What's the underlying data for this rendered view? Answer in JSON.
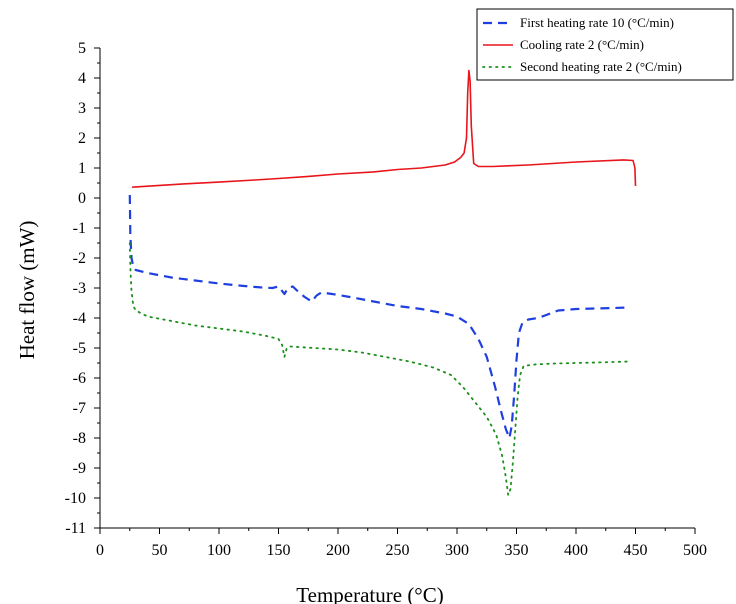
{
  "chart_data": {
    "type": "line",
    "xlabel": "Temperature (°C)",
    "ylabel": "Heat flow (mW)",
    "xlim": [
      0,
      500
    ],
    "ylim": [
      -11,
      5
    ],
    "x_ticks": [
      0,
      50,
      100,
      150,
      200,
      250,
      300,
      350,
      400,
      450,
      500
    ],
    "y_ticks": [
      -11,
      -10,
      -9,
      -8,
      -7,
      -6,
      -5,
      -4,
      -3,
      -2,
      -1,
      0,
      1,
      2,
      3,
      4,
      5
    ],
    "grid": false,
    "legend_position": "top-right",
    "series": [
      {
        "name": "First heating rate 10 (°C/min)",
        "color": "#1f3fe0",
        "line_style": "dashed",
        "points": [
          [
            25,
            0.1
          ],
          [
            25.5,
            -1.2
          ],
          [
            26.5,
            -2.0
          ],
          [
            28,
            -2.3
          ],
          [
            30,
            -2.4
          ],
          [
            40,
            -2.5
          ],
          [
            60,
            -2.65
          ],
          [
            80,
            -2.75
          ],
          [
            100,
            -2.85
          ],
          [
            120,
            -2.93
          ],
          [
            135,
            -2.98
          ],
          [
            145,
            -3.0
          ],
          [
            150,
            -2.95
          ],
          [
            152,
            -3.05
          ],
          [
            155,
            -3.2
          ],
          [
            158,
            -3.0
          ],
          [
            162,
            -2.95
          ],
          [
            166,
            -3.1
          ],
          [
            172,
            -3.3
          ],
          [
            178,
            -3.45
          ],
          [
            182,
            -3.25
          ],
          [
            186,
            -3.15
          ],
          [
            195,
            -3.2
          ],
          [
            210,
            -3.3
          ],
          [
            230,
            -3.45
          ],
          [
            250,
            -3.6
          ],
          [
            270,
            -3.7
          ],
          [
            290,
            -3.85
          ],
          [
            300,
            -3.95
          ],
          [
            310,
            -4.2
          ],
          [
            318,
            -4.7
          ],
          [
            325,
            -5.3
          ],
          [
            332,
            -6.3
          ],
          [
            337,
            -7.1
          ],
          [
            341,
            -7.7
          ],
          [
            344,
            -8.0
          ],
          [
            346,
            -7.6
          ],
          [
            348,
            -6.6
          ],
          [
            350,
            -5.4
          ],
          [
            352,
            -4.5
          ],
          [
            355,
            -4.15
          ],
          [
            360,
            -4.05
          ],
          [
            368,
            -4.0
          ],
          [
            375,
            -3.9
          ],
          [
            385,
            -3.75
          ],
          [
            400,
            -3.7
          ],
          [
            420,
            -3.68
          ],
          [
            445,
            -3.65
          ]
        ]
      },
      {
        "name": "Cooling rate 2 (°C/min)",
        "color": "#e8151b",
        "line_style": "solid",
        "points": [
          [
            450,
            0.4
          ],
          [
            449.5,
            1.0
          ],
          [
            448,
            1.25
          ],
          [
            440,
            1.27
          ],
          [
            400,
            1.2
          ],
          [
            360,
            1.1
          ],
          [
            330,
            1.05
          ],
          [
            318,
            1.05
          ],
          [
            314,
            1.15
          ],
          [
            312,
            2.4
          ],
          [
            311,
            3.9
          ],
          [
            310,
            4.25
          ],
          [
            309,
            3.5
          ],
          [
            308,
            2.0
          ],
          [
            306,
            1.5
          ],
          [
            303,
            1.35
          ],
          [
            298,
            1.2
          ],
          [
            290,
            1.1
          ],
          [
            270,
            1.0
          ],
          [
            250,
            0.95
          ],
          [
            230,
            0.87
          ],
          [
            200,
            0.8
          ],
          [
            175,
            0.72
          ],
          [
            150,
            0.65
          ],
          [
            130,
            0.6
          ],
          [
            100,
            0.53
          ],
          [
            70,
            0.47
          ],
          [
            50,
            0.42
          ],
          [
            35,
            0.38
          ],
          [
            27,
            0.36
          ]
        ]
      },
      {
        "name": "Second heating rate 2 (°C/min)",
        "color": "#1a8f1a",
        "line_style": "dotted",
        "points": [
          [
            25,
            -1.5
          ],
          [
            25.5,
            -2.3
          ],
          [
            26.5,
            -3.1
          ],
          [
            28,
            -3.6
          ],
          [
            30,
            -3.75
          ],
          [
            40,
            -3.95
          ],
          [
            60,
            -4.1
          ],
          [
            80,
            -4.25
          ],
          [
            100,
            -4.35
          ],
          [
            120,
            -4.45
          ],
          [
            140,
            -4.6
          ],
          [
            150,
            -4.7
          ],
          [
            153,
            -4.9
          ],
          [
            155,
            -5.3
          ],
          [
            157,
            -5.0
          ],
          [
            160,
            -4.95
          ],
          [
            180,
            -5.0
          ],
          [
            200,
            -5.05
          ],
          [
            220,
            -5.15
          ],
          [
            240,
            -5.3
          ],
          [
            260,
            -5.45
          ],
          [
            280,
            -5.65
          ],
          [
            295,
            -5.9
          ],
          [
            305,
            -6.3
          ],
          [
            315,
            -6.8
          ],
          [
            325,
            -7.3
          ],
          [
            333,
            -7.9
          ],
          [
            338,
            -8.6
          ],
          [
            341,
            -9.3
          ],
          [
            343,
            -9.9
          ],
          [
            345,
            -9.7
          ],
          [
            347,
            -8.8
          ],
          [
            349,
            -7.7
          ],
          [
            351,
            -6.6
          ],
          [
            353,
            -5.9
          ],
          [
            356,
            -5.6
          ],
          [
            365,
            -5.55
          ],
          [
            380,
            -5.52
          ],
          [
            400,
            -5.5
          ],
          [
            420,
            -5.48
          ],
          [
            445,
            -5.45
          ]
        ]
      }
    ]
  }
}
